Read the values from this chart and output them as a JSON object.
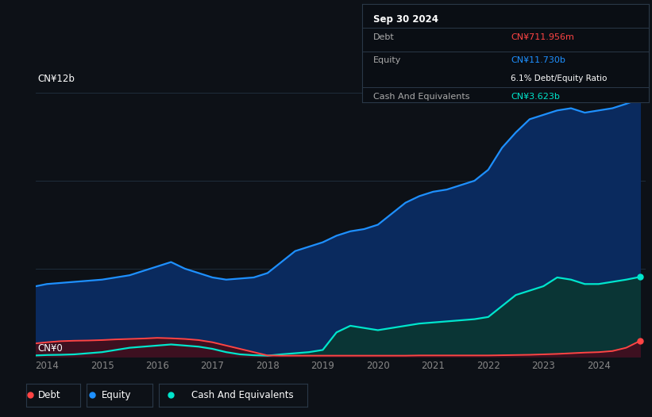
{
  "background_color": "#0d1117",
  "plot_bg_color": "#0d1117",
  "title_box": {
    "date": "Sep 30 2024",
    "debt_label": "Debt",
    "debt_value": "CN¥711.956m",
    "debt_color": "#ff4444",
    "equity_label": "Equity",
    "equity_value": "CN¥11.730b",
    "equity_color": "#1e90ff",
    "ratio_text": "6.1% Debt/Equity Ratio",
    "cash_label": "Cash And Equivalents",
    "cash_value": "CN¥3.623b",
    "cash_color": "#00e5cc"
  },
  "y_label_top": "CN¥12b",
  "y_label_bottom": "CN¥0",
  "years": [
    2013.8,
    2014.0,
    2014.25,
    2014.5,
    2014.75,
    2015.0,
    2015.25,
    2015.5,
    2015.75,
    2016.0,
    2016.25,
    2016.5,
    2016.75,
    2017.0,
    2017.25,
    2017.5,
    2017.75,
    2018.0,
    2018.25,
    2018.5,
    2018.75,
    2019.0,
    2019.25,
    2019.5,
    2019.75,
    2020.0,
    2020.25,
    2020.5,
    2020.75,
    2021.0,
    2021.25,
    2021.5,
    2021.75,
    2022.0,
    2022.25,
    2022.5,
    2022.75,
    2023.0,
    2023.25,
    2023.5,
    2023.75,
    2024.0,
    2024.25,
    2024.5,
    2024.75
  ],
  "equity": [
    3.2,
    3.3,
    3.35,
    3.4,
    3.45,
    3.5,
    3.6,
    3.7,
    3.9,
    4.1,
    4.3,
    4.0,
    3.8,
    3.6,
    3.5,
    3.55,
    3.6,
    3.8,
    4.3,
    4.8,
    5.0,
    5.2,
    5.5,
    5.7,
    5.8,
    6.0,
    6.5,
    7.0,
    7.3,
    7.5,
    7.6,
    7.8,
    8.0,
    8.5,
    9.5,
    10.2,
    10.8,
    11.0,
    11.2,
    11.3,
    11.1,
    11.2,
    11.3,
    11.5,
    11.73
  ],
  "debt": [
    0.6,
    0.65,
    0.7,
    0.72,
    0.73,
    0.75,
    0.78,
    0.8,
    0.82,
    0.85,
    0.83,
    0.8,
    0.75,
    0.65,
    0.5,
    0.35,
    0.2,
    0.05,
    0.04,
    0.04,
    0.04,
    0.04,
    0.04,
    0.04,
    0.04,
    0.04,
    0.04,
    0.04,
    0.05,
    0.05,
    0.05,
    0.05,
    0.05,
    0.05,
    0.06,
    0.07,
    0.08,
    0.1,
    0.12,
    0.15,
    0.18,
    0.2,
    0.25,
    0.4,
    0.71
  ],
  "cash": [
    0.05,
    0.07,
    0.08,
    0.1,
    0.15,
    0.2,
    0.3,
    0.4,
    0.45,
    0.5,
    0.55,
    0.5,
    0.45,
    0.35,
    0.2,
    0.1,
    0.06,
    0.04,
    0.1,
    0.15,
    0.2,
    0.3,
    1.1,
    1.4,
    1.3,
    1.2,
    1.3,
    1.4,
    1.5,
    1.55,
    1.6,
    1.65,
    1.7,
    1.8,
    2.3,
    2.8,
    3.0,
    3.2,
    3.6,
    3.5,
    3.3,
    3.3,
    3.4,
    3.5,
    3.623
  ],
  "equity_line_color": "#1e90ff",
  "equity_fill_color": "#0a2a5e",
  "debt_line_color": "#ff4444",
  "debt_fill_color": "#3d1020",
  "cash_line_color": "#00e5cc",
  "cash_fill_color": "#0a3535",
  "grid_color": "#1e2d3d",
  "tick_color": "#888888",
  "ylim": [
    0,
    13
  ],
  "xlim": [
    2013.8,
    2024.85
  ],
  "xticks": [
    2014,
    2015,
    2016,
    2017,
    2018,
    2019,
    2020,
    2021,
    2022,
    2023,
    2024
  ]
}
